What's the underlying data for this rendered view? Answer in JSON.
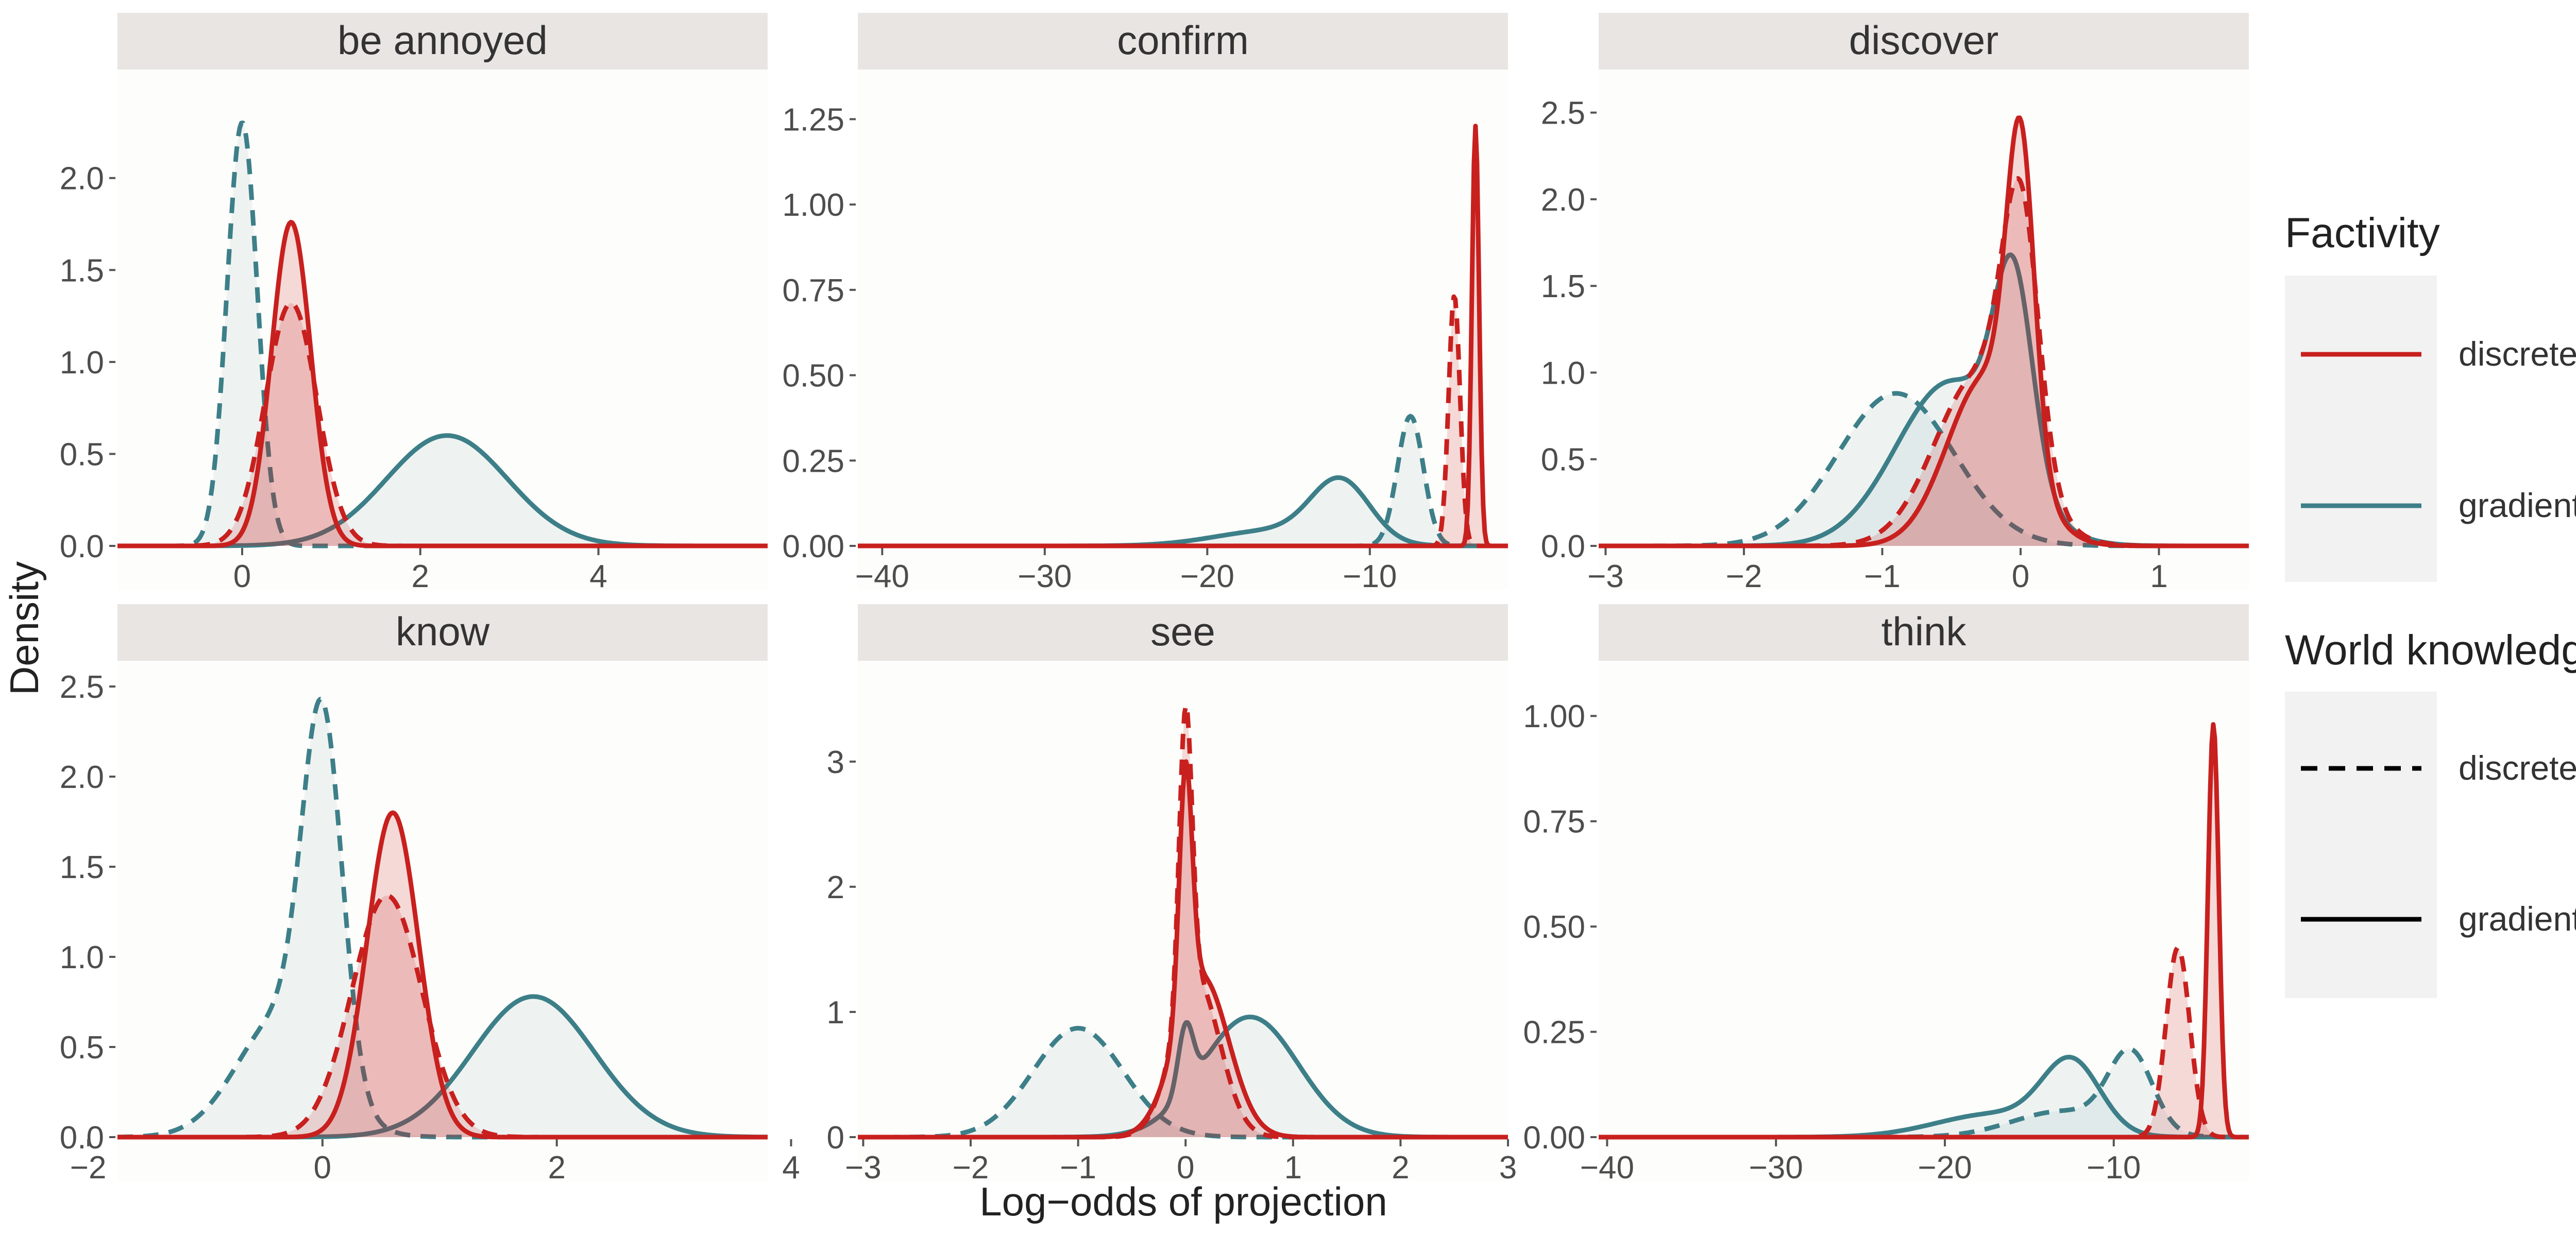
{
  "figure": {
    "ylabel": "Density",
    "xlabel": "Log−odds of projection"
  },
  "legend": {
    "factivity": {
      "title": "Factivity",
      "items": [
        {
          "label": "discrete",
          "color": "#c8201e"
        },
        {
          "label": "gradient",
          "color": "#3d7f88"
        }
      ]
    },
    "world": {
      "title": "World knowledge",
      "items": [
        {
          "label": "discrete",
          "linetype": "dashed"
        },
        {
          "label": "gradient",
          "linetype": "solid"
        }
      ]
    }
  },
  "colors": {
    "discrete": "#c8201e",
    "gradient": "#3d7f88",
    "panel_bg": "#fdfdfb",
    "strip_bg": "#e8e5e3",
    "legend_key_bg": "#f2f2f2"
  },
  "chart_data": [
    {
      "type": "area",
      "title": "be annoyed",
      "xlim": [
        -1.4,
        5.9
      ],
      "ylim": [
        0,
        2.45
      ],
      "xticks": [
        0,
        2,
        4
      ],
      "xtick_labels": [
        "0",
        "2",
        "4"
      ],
      "yticks": [
        0,
        0.5,
        1.0,
        1.5,
        2.0
      ],
      "ytick_labels": [
        "0.0",
        "0.5",
        "1.0",
        "1.5",
        "2.0"
      ],
      "series": [
        {
          "factivity": "gradient",
          "world": "discrete",
          "components": [
            {
              "mu": 0.0,
              "sd": 0.17,
              "w": 1
            }
          ],
          "peak": 2.3
        },
        {
          "factivity": "gradient",
          "world": "gradient",
          "components": [
            {
              "mu": 2.3,
              "sd": 0.68,
              "w": 1
            }
          ],
          "peak": 0.6
        },
        {
          "factivity": "discrete",
          "world": "discrete",
          "components": [
            {
              "mu": 0.55,
              "sd": 0.29,
              "w": 1
            }
          ],
          "peak": 1.32
        },
        {
          "factivity": "discrete",
          "world": "gradient",
          "components": [
            {
              "mu": 0.55,
              "sd": 0.22,
              "w": 1
            }
          ],
          "peak": 1.76
        }
      ]
    },
    {
      "type": "area",
      "title": "confirm",
      "xlim": [
        -41.5,
        -1.5
      ],
      "ylim": [
        0,
        1.32
      ],
      "xticks": [
        -40,
        -30,
        -20,
        -10
      ],
      "xtick_labels": [
        "−40",
        "−30",
        "−20",
        "−10"
      ],
      "yticks": [
        0,
        0.25,
        0.5,
        0.75,
        1.0,
        1.25
      ],
      "ytick_labels": [
        "0.00",
        "0.25",
        "0.50",
        "0.75",
        "1.00",
        "1.25"
      ],
      "series": [
        {
          "factivity": "gradient",
          "world": "gradient",
          "components": [
            {
              "mu": -11.8,
              "sd": 1.8,
              "w": 0.8
            },
            {
              "mu": -16,
              "sd": 3.5,
              "w": 0.2
            }
          ],
          "peak": 0.2
        },
        {
          "factivity": "gradient",
          "world": "discrete",
          "components": [
            {
              "mu": -7.5,
              "sd": 0.8,
              "w": 1
            }
          ],
          "peak": 0.38
        },
        {
          "factivity": "discrete",
          "world": "discrete",
          "components": [
            {
              "mu": -4.8,
              "sd": 0.35,
              "w": 1
            }
          ],
          "peak": 0.73
        },
        {
          "factivity": "discrete",
          "world": "gradient",
          "components": [
            {
              "mu": -3.5,
              "sd": 0.22,
              "w": 1
            }
          ],
          "peak": 1.23
        }
      ]
    },
    {
      "type": "area",
      "title": "discover",
      "xlim": [
        -3.05,
        1.65
      ],
      "ylim": [
        0,
        2.6
      ],
      "xticks": [
        -3,
        -2,
        -1,
        0,
        1
      ],
      "xtick_labels": [
        "−3",
        "−2",
        "−1",
        "0",
        "1"
      ],
      "yticks": [
        0,
        0.5,
        1.0,
        1.5,
        2.0,
        2.5
      ],
      "ytick_labels": [
        "0.0",
        "0.5",
        "1.0",
        "1.5",
        "2.0",
        "2.5"
      ],
      "series": [
        {
          "factivity": "gradient",
          "world": "discrete",
          "components": [
            {
              "mu": -0.9,
              "sd": 0.42,
              "w": 1
            }
          ],
          "peak": 0.88
        },
        {
          "factivity": "gradient",
          "world": "gradient",
          "components": [
            {
              "mu": -0.05,
              "sd": 0.14,
              "w": 0.55
            },
            {
              "mu": -0.5,
              "sd": 0.4,
              "w": 0.45
            }
          ],
          "peak": 1.68
        },
        {
          "factivity": "discrete",
          "world": "discrete",
          "components": [
            {
              "mu": 0.0,
              "sd": 0.13,
              "w": 0.6
            },
            {
              "mu": -0.3,
              "sd": 0.32,
              "w": 0.4
            }
          ],
          "peak": 2.12
        },
        {
          "factivity": "discrete",
          "world": "gradient",
          "components": [
            {
              "mu": 0.0,
              "sd": 0.1,
              "w": 0.65
            },
            {
              "mu": -0.25,
              "sd": 0.28,
              "w": 0.35
            }
          ],
          "peak": 2.47
        }
      ]
    },
    {
      "type": "area",
      "title": "know",
      "xlim": [
        -1.75,
        3.8
      ],
      "ylim": [
        0,
        2.5
      ],
      "xticks": [
        -2,
        0,
        2,
        4
      ],
      "xtick_labels": [
        "−2",
        "0",
        "2",
        "4"
      ],
      "yticks": [
        0,
        0.5,
        1.0,
        1.5,
        2.0,
        2.5
      ],
      "ytick_labels": [
        "0.0",
        "0.5",
        "1.0",
        "1.5",
        "2.0",
        "2.5"
      ],
      "series": [
        {
          "factivity": "gradient",
          "world": "discrete",
          "components": [
            {
              "mu": 0.0,
              "sd": 0.17,
              "w": 0.75
            },
            {
              "mu": -0.35,
              "sd": 0.38,
              "w": 0.25
            }
          ],
          "peak": 2.43
        },
        {
          "factivity": "gradient",
          "world": "gradient",
          "components": [
            {
              "mu": 1.8,
              "sd": 0.52,
              "w": 1
            }
          ],
          "peak": 0.78
        },
        {
          "factivity": "discrete",
          "world": "discrete",
          "components": [
            {
              "mu": 0.55,
              "sd": 0.3,
              "w": 1
            }
          ],
          "peak": 1.34
        },
        {
          "factivity": "discrete",
          "world": "gradient",
          "components": [
            {
              "mu": 0.6,
              "sd": 0.22,
              "w": 1
            }
          ],
          "peak": 1.8
        }
      ]
    },
    {
      "type": "area",
      "title": "see",
      "xlim": [
        -3.05,
        3.0
      ],
      "ylim": [
        0,
        3.6
      ],
      "xticks": [
        -3,
        -2,
        -1,
        0,
        1,
        2,
        3
      ],
      "xtick_labels": [
        "−3",
        "−2",
        "−1",
        "0",
        "1",
        "2",
        "3"
      ],
      "yticks": [
        0,
        1,
        2,
        3
      ],
      "ytick_labels": [
        "0",
        "1",
        "2",
        "3"
      ],
      "series": [
        {
          "factivity": "gradient",
          "world": "discrete",
          "components": [
            {
              "mu": -1.0,
              "sd": 0.42,
              "w": 1
            }
          ],
          "peak": 0.87
        },
        {
          "factivity": "gradient",
          "world": "gradient",
          "components": [
            {
              "mu": 0.0,
              "sd": 0.07,
              "w": 0.35
            },
            {
              "mu": 0.6,
              "sd": 0.45,
              "w": 0.65
            }
          ],
          "peak": 0.96
        },
        {
          "factivity": "discrete",
          "world": "discrete",
          "components": [
            {
              "mu": 0.0,
              "sd": 0.06,
              "w": 0.65
            },
            {
              "mu": 0.1,
              "sd": 0.22,
              "w": 0.35
            }
          ],
          "peak": 3.45
        },
        {
          "factivity": "discrete",
          "world": "gradient",
          "components": [
            {
              "mu": 0.0,
              "sd": 0.06,
              "w": 0.6
            },
            {
              "mu": 0.15,
              "sd": 0.25,
              "w": 0.4
            }
          ],
          "peak": 3.0
        }
      ]
    },
    {
      "type": "area",
      "title": "think",
      "xlim": [
        -40.5,
        -2.0
      ],
      "ylim": [
        0,
        1.07
      ],
      "xticks": [
        -40,
        -30,
        -20,
        -10
      ],
      "xtick_labels": [
        "−40",
        "−30",
        "−20",
        "−10"
      ],
      "yticks": [
        0,
        0.25,
        0.5,
        0.75,
        1.0
      ],
      "ytick_labels": [
        "0.00",
        "0.25",
        "0.50",
        "0.75",
        "1.00"
      ],
      "series": [
        {
          "factivity": "gradient",
          "world": "gradient",
          "components": [
            {
              "mu": -12.5,
              "sd": 1.7,
              "w": 0.75
            },
            {
              "mu": -17,
              "sd": 3.5,
              "w": 0.25
            }
          ],
          "peak": 0.19
        },
        {
          "factivity": "gradient",
          "world": "discrete",
          "components": [
            {
              "mu": -9.0,
              "sd": 1.3,
              "w": 0.75
            },
            {
              "mu": -13,
              "sd": 3.0,
              "w": 0.25
            }
          ],
          "peak": 0.21
        },
        {
          "factivity": "discrete",
          "world": "discrete",
          "components": [
            {
              "mu": -6.2,
              "sd": 0.7,
              "w": 1
            }
          ],
          "peak": 0.45
        },
        {
          "factivity": "discrete",
          "world": "gradient",
          "components": [
            {
              "mu": -4.1,
              "sd": 0.32,
              "w": 1
            }
          ],
          "peak": 0.98
        }
      ]
    }
  ]
}
